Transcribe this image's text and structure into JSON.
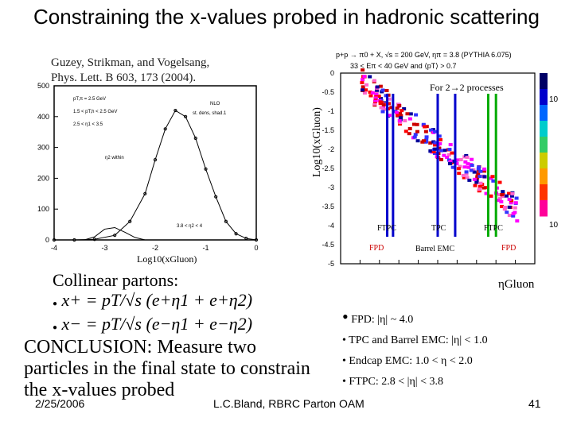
{
  "slide": {
    "title": "Constraining the x-values probed in hadronic scattering",
    "reference_line1": "Guzey, Strikman, and Vogelsang,",
    "reference_line2": "Phys. Lett. B 603, 173 (2004).",
    "collinear_heading": "Collinear partons:",
    "x_plus": "x+ = pT/√s (e+η1 + e+η2)",
    "x_minus": "x− = pT/√s (e−η1 + e−η2)",
    "conclusion_line1": "CONCLUSION:  Measure two",
    "conclusion_line2": "particles in the final state to constrain",
    "conclusion_line3": "the x-values probed",
    "bullets": [
      "FPD: |η| ~ 4.0",
      "TPC and Barrel EMC: |η| < 1.0",
      "Endcap EMC:  1.0 < η < 2.0",
      "FTPC: 2.8 < |η| < 3.8"
    ],
    "footer_date": "2/25/2006",
    "footer_center": "L.C.Bland, RBRC Parton OAM",
    "footer_page": "41"
  },
  "chart_data": [
    {
      "type": "line",
      "xlabel": "Log10(xGluon)",
      "xticks": [
        "-4",
        "-3",
        "-2",
        "-1",
        "0"
      ],
      "yticks": [
        "0",
        "100",
        "200",
        "300",
        "400",
        "500"
      ],
      "ylim": [
        0,
        500
      ],
      "xlim": [
        -4,
        0
      ],
      "legend": [
        "pT,π = 2.5 GeV",
        "1.5 < pT,h < 2.5 GeV",
        "2.5 < η1 < 3.5",
        "η2 within",
        "3.8 < η2 < 4",
        "NLO",
        "st. dens, shad.1"
      ],
      "series": [
        {
          "x": [
            -4.0,
            -3.6,
            -3.2,
            -2.8,
            -2.5,
            -2.2,
            -2.0,
            -1.8,
            -1.6,
            -1.4,
            -1.2,
            -1.0,
            -0.8,
            -0.6,
            -0.4,
            -0.2,
            0.0
          ],
          "values": [
            0,
            0,
            2,
            15,
            60,
            150,
            260,
            360,
            420,
            400,
            330,
            230,
            140,
            60,
            20,
            5,
            0
          ]
        },
        {
          "x": [
            -3.4,
            -3.2,
            -3.0,
            -2.8,
            -2.6,
            -2.4,
            -2.2
          ],
          "values": [
            0,
            10,
            35,
            40,
            25,
            8,
            0
          ]
        }
      ]
    },
    {
      "type": "heatmap",
      "title": "p+p → π0 + X, √s = 200 GeV, ηπ = 3.8 (PYTHIA 6.075)",
      "subtitle": "33 < Eπ < 40 GeV and ⟨pT⟩ > 0.7",
      "annotation": "For 2→2 processes",
      "ylabel": "Log10(xGluon)",
      "xlabel": "ηGluon",
      "yticks": [
        "0",
        "-0.5",
        "-1",
        "-1.5",
        "-2",
        "-2.5",
        "-3",
        "-3.5",
        "-4",
        "-4.5",
        "-5"
      ],
      "xticks": [
        "-5",
        "-4",
        "-3",
        "-2",
        "-1",
        "0",
        "1",
        "2",
        "3",
        "4",
        "5"
      ],
      "ylim": [
        -5,
        0
      ],
      "xlim": [
        -5,
        5
      ],
      "colorbar_ticks": [
        "10",
        "10"
      ],
      "detector_labels": [
        "FTPC",
        "TPC",
        "FTPC",
        "FPD",
        "Barrel EMC",
        "FPD"
      ],
      "ridge": {
        "x": [
          -4,
          -3,
          -2,
          -1,
          0,
          1,
          2,
          3,
          4
        ],
        "values": [
          -0.2,
          -0.6,
          -1.0,
          -1.5,
          -1.9,
          -2.3,
          -2.7,
          -3.1,
          -3.5
        ]
      }
    }
  ]
}
